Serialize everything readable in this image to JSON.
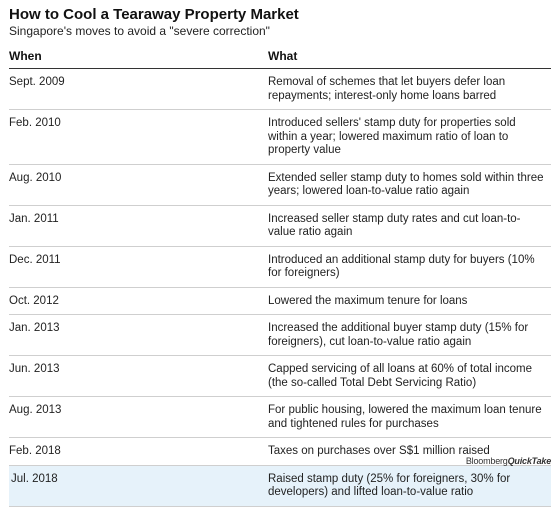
{
  "header": {
    "title": "How to Cool a Tearaway Property Market",
    "subtitle": "Singapore's moves to avoid a \"severe correction\""
  },
  "table": {
    "columns": [
      "When",
      "What"
    ],
    "rows": [
      {
        "when": "Sept. 2009",
        "what": "Removal of schemes that let buyers defer loan repayments; interest-only home loans barred"
      },
      {
        "when": "Feb. 2010",
        "what": "Introduced sellers' stamp duty for properties sold within a year; lowered maximum ratio of loan to property value"
      },
      {
        "when": "Aug. 2010",
        "what": "Extended seller stamp duty to homes sold within three years; lowered loan-to-value ratio again"
      },
      {
        "when": "Jan. 2011",
        "what": "Increased seller stamp duty rates and cut loan-to-value ratio again"
      },
      {
        "when": "Dec. 2011",
        "what": "Introduced an additional stamp duty for buyers (10% for foreigners)"
      },
      {
        "when": "Oct. 2012",
        "what": "Lowered the maximum tenure for loans"
      },
      {
        "when": "Jan. 2013",
        "what": "Increased the additional buyer stamp duty (15% for foreigners), cut loan-to-value ratio again"
      },
      {
        "when": "Jun. 2013",
        "what": "Capped servicing of all loans at 60% of total income (the so-called Total Debt Servicing Ratio)"
      },
      {
        "when": "Aug. 2013",
        "what": "For public housing, lowered the maximum loan tenure and tightened rules for purchases"
      },
      {
        "when": "Feb. 2018",
        "what": "Taxes on purchases over S$1 million raised"
      },
      {
        "when": "Jul. 2018",
        "what": "Raised stamp duty (25% for foreigners, 30% for developers) and lifted loan-to-value ratio",
        "highlight": true
      }
    ]
  },
  "footer": {
    "brand": "Bloomberg",
    "product": "QuickTake"
  },
  "colors": {
    "highlight_row": "#e6f2fa",
    "rule": "#333333",
    "divider": "#cfcfcf"
  }
}
